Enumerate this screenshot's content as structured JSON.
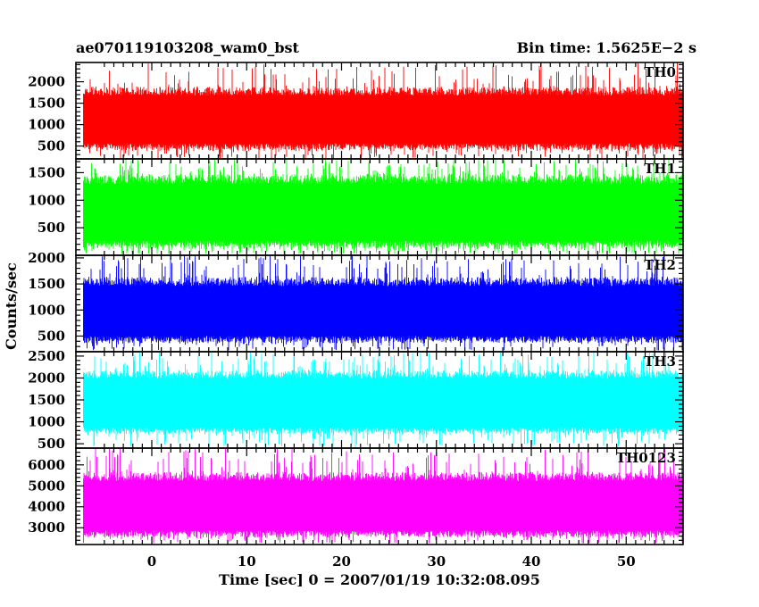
{
  "chart_data": {
    "type": "line",
    "title": "ae070119103208_wam0_bst",
    "subtitle": "Bin time: 1.5625E−2 s",
    "xlabel": "Time [sec] 0 = 2007/01/19 10:32:08.095",
    "ylabel": "Counts/sec",
    "xlim": [
      -8,
      56
    ],
    "xticks": [
      0,
      10,
      20,
      30,
      40,
      50
    ],
    "grid": false,
    "panels": [
      {
        "name": "TH0",
        "color": "#ff0000",
        "ylim": [
          200,
          2450
        ],
        "yticks": [
          500,
          1000,
          1500,
          2000
        ],
        "band": [
          380,
          1900
        ],
        "spike_max": 2450,
        "spike_min": 200
      },
      {
        "name": "TH1",
        "color": "#00ff00",
        "ylim": [
          0,
          1750
        ],
        "yticks": [
          500,
          1000,
          1500
        ],
        "band": [
          100,
          1500
        ],
        "spike_max": 1750,
        "spike_min": 20
      },
      {
        "name": "TH2",
        "color": "#0000ff",
        "ylim": [
          200,
          2050
        ],
        "yticks": [
          500,
          1000,
          1500,
          2000
        ],
        "band": [
          350,
          1650
        ],
        "spike_max": 2050,
        "spike_min": 220
      },
      {
        "name": "TH3",
        "color": "#00ffff",
        "ylim": [
          400,
          2600
        ],
        "yticks": [
          500,
          1000,
          1500,
          2000,
          2500
        ],
        "band": [
          700,
          2200
        ],
        "spike_max": 2600,
        "spike_min": 420
      },
      {
        "name": "TH0123",
        "color": "#ff00ff",
        "ylim": [
          2200,
          6800
        ],
        "yticks": [
          3000,
          4000,
          5000,
          6000
        ],
        "band": [
          2500,
          5700
        ],
        "spike_max": 6800,
        "spike_min": 2250
      }
    ]
  }
}
